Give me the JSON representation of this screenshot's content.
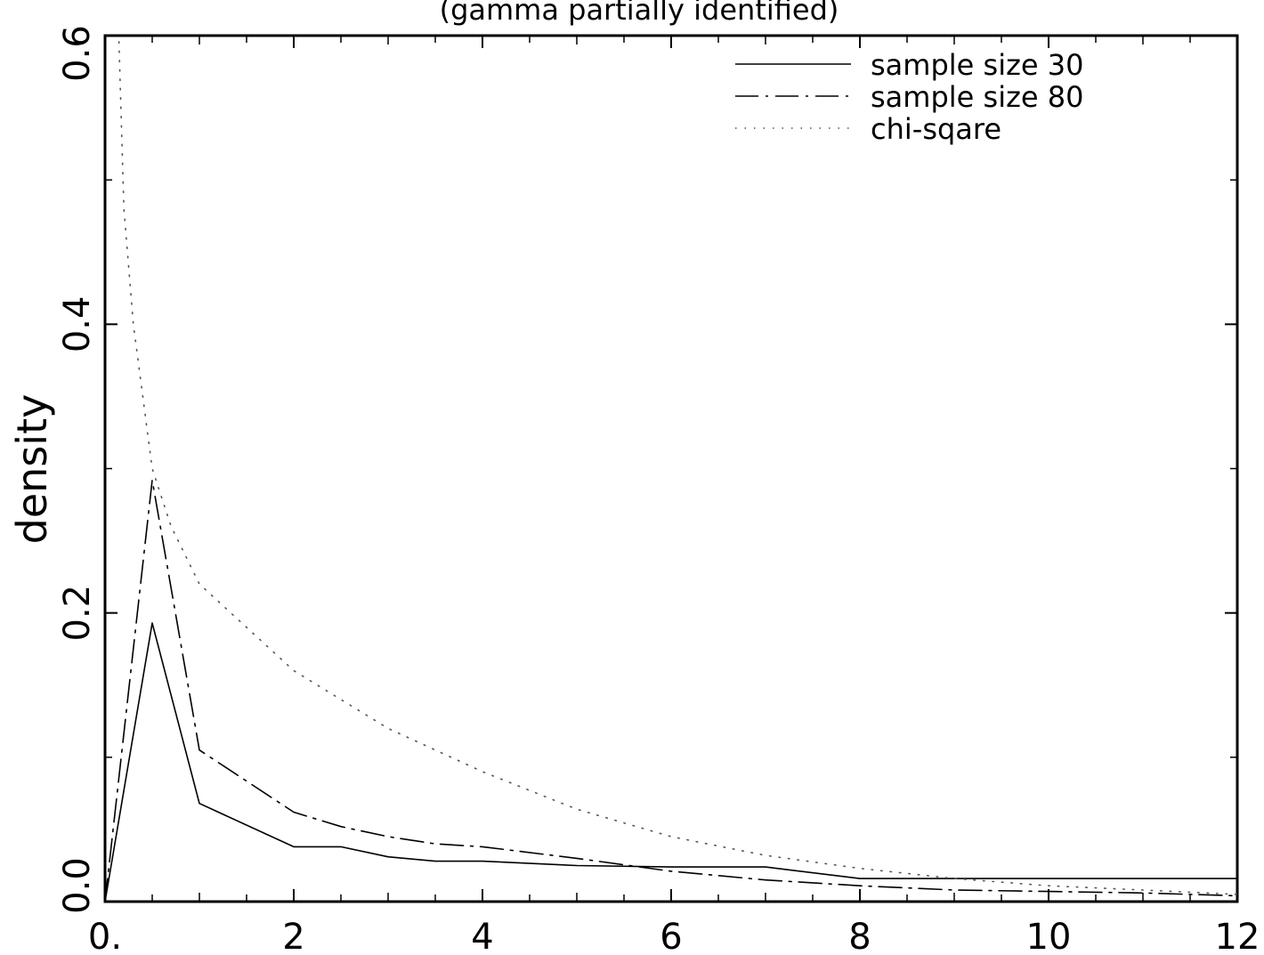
{
  "chart_data": {
    "type": "line",
    "title": "(gamma partially identified)",
    "xlabel": "",
    "ylabel": "density",
    "xlim": [
      0,
      12
    ],
    "ylim": [
      0,
      0.6
    ],
    "x_ticks": [
      0,
      2,
      4,
      6,
      8,
      10,
      12
    ],
    "x_tick_labels": [
      "0.",
      "2",
      "4",
      "6",
      "8",
      "10",
      "12"
    ],
    "y_ticks": [
      0,
      0.2,
      0.4,
      0.6
    ],
    "y_tick_labels": [
      "0.0",
      "0.2",
      "0.4",
      "0.6"
    ],
    "grid": false,
    "legend_position": "top-right",
    "series": [
      {
        "name": "sample size 30",
        "style": "solid",
        "x": [
          0,
          0.5,
          1,
          2,
          2.5,
          3,
          3.5,
          4,
          5,
          6,
          7,
          8,
          9,
          10,
          11,
          12
        ],
        "values": [
          0,
          0.193,
          0.068,
          0.038,
          0.038,
          0.031,
          0.028,
          0.028,
          0.025,
          0.024,
          0.024,
          0.016,
          0.016,
          0.016,
          0.016,
          0.016
        ]
      },
      {
        "name": "sample size 80",
        "style": "dashdot",
        "x": [
          0,
          0.5,
          1,
          2,
          2.5,
          3,
          3.5,
          4,
          5,
          6,
          7,
          8,
          9,
          10,
          11,
          12
        ],
        "values": [
          0,
          0.292,
          0.105,
          0.062,
          0.052,
          0.045,
          0.04,
          0.038,
          0.03,
          0.021,
          0.015,
          0.011,
          0.008,
          0.007,
          0.006,
          0.004
        ]
      },
      {
        "name": "chi-sqare",
        "style": "dotted",
        "x": [
          0.05,
          0.1,
          0.2,
          0.3,
          0.4,
          0.5,
          0.7,
          1,
          1.5,
          2,
          3,
          4,
          5,
          6,
          7,
          8,
          9,
          10,
          11,
          12
        ],
        "values": [
          0.9,
          0.7,
          0.48,
          0.4,
          0.35,
          0.3,
          0.26,
          0.22,
          0.19,
          0.16,
          0.12,
          0.09,
          0.064,
          0.045,
          0.032,
          0.023,
          0.016,
          0.011,
          0.008,
          0.005
        ]
      }
    ]
  }
}
